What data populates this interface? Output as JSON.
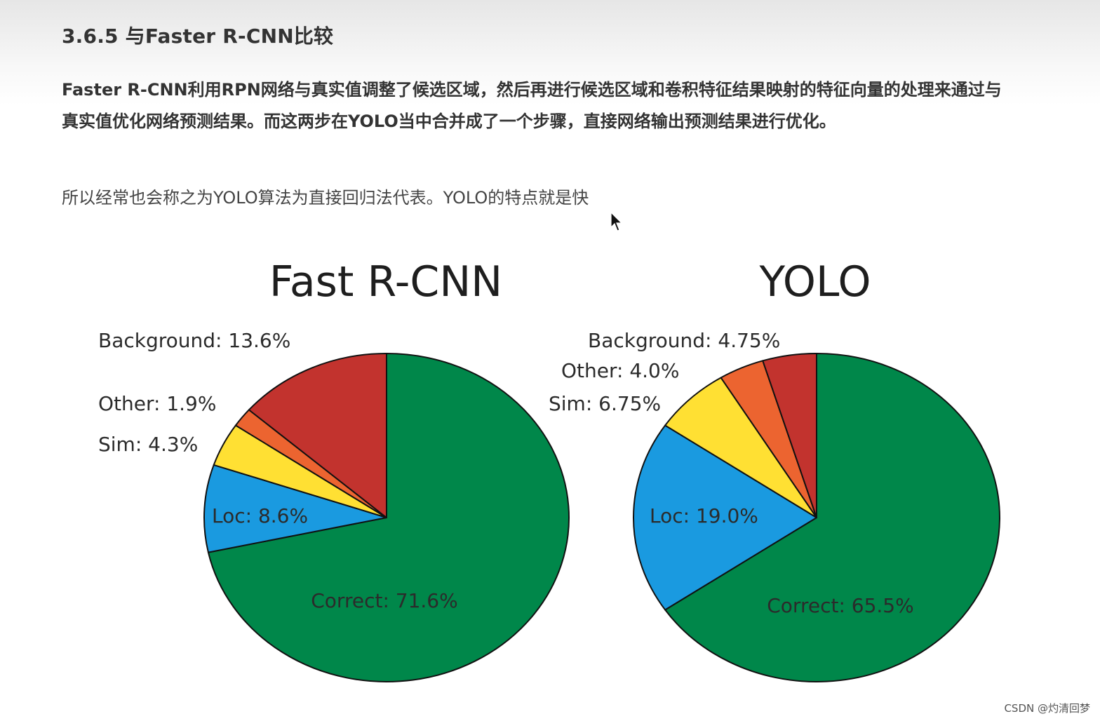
{
  "heading": "3.6.5 与Faster R-CNN比较",
  "paragraph1": "Faster R-CNN利用RPN网络与真实值调整了候选区域，然后再进行候选区域和卷积特征结果映射的特征向量的处理来通过与真实值优化网络预测结果。而这两步在YOLO当中合并成了一个步骤，直接网络输出预测结果进行优化。",
  "paragraph2": "所以经常也会称之为YOLO算法为直接回归法代表。YOLO的特点就是快",
  "watermark": "CSDN @灼清回梦",
  "colors": {
    "correct": "#00874a",
    "loc": "#1a9ae0",
    "sim": "#ffe033",
    "other": "#ec6430",
    "background": "#c2332e"
  },
  "chart_data": [
    {
      "type": "pie",
      "title": "Fast R-CNN",
      "categories": [
        "Correct",
        "Loc",
        "Sim",
        "Other",
        "Background"
      ],
      "values": [
        71.6,
        8.6,
        4.3,
        1.9,
        13.6
      ],
      "labels": [
        "Correct: 71.6%",
        "Loc: 8.6%",
        "Sim: 4.3%",
        "Other: 1.9%",
        "Background: 13.6%"
      ]
    },
    {
      "type": "pie",
      "title": "YOLO",
      "categories": [
        "Correct",
        "Loc",
        "Sim",
        "Other",
        "Background"
      ],
      "values": [
        65.5,
        19.0,
        6.75,
        4.0,
        4.75
      ],
      "labels": [
        "Correct: 65.5%",
        "Loc: 19.0%",
        "Sim: 6.75%",
        "Other: 4.0%",
        "Background: 4.75%"
      ]
    }
  ]
}
